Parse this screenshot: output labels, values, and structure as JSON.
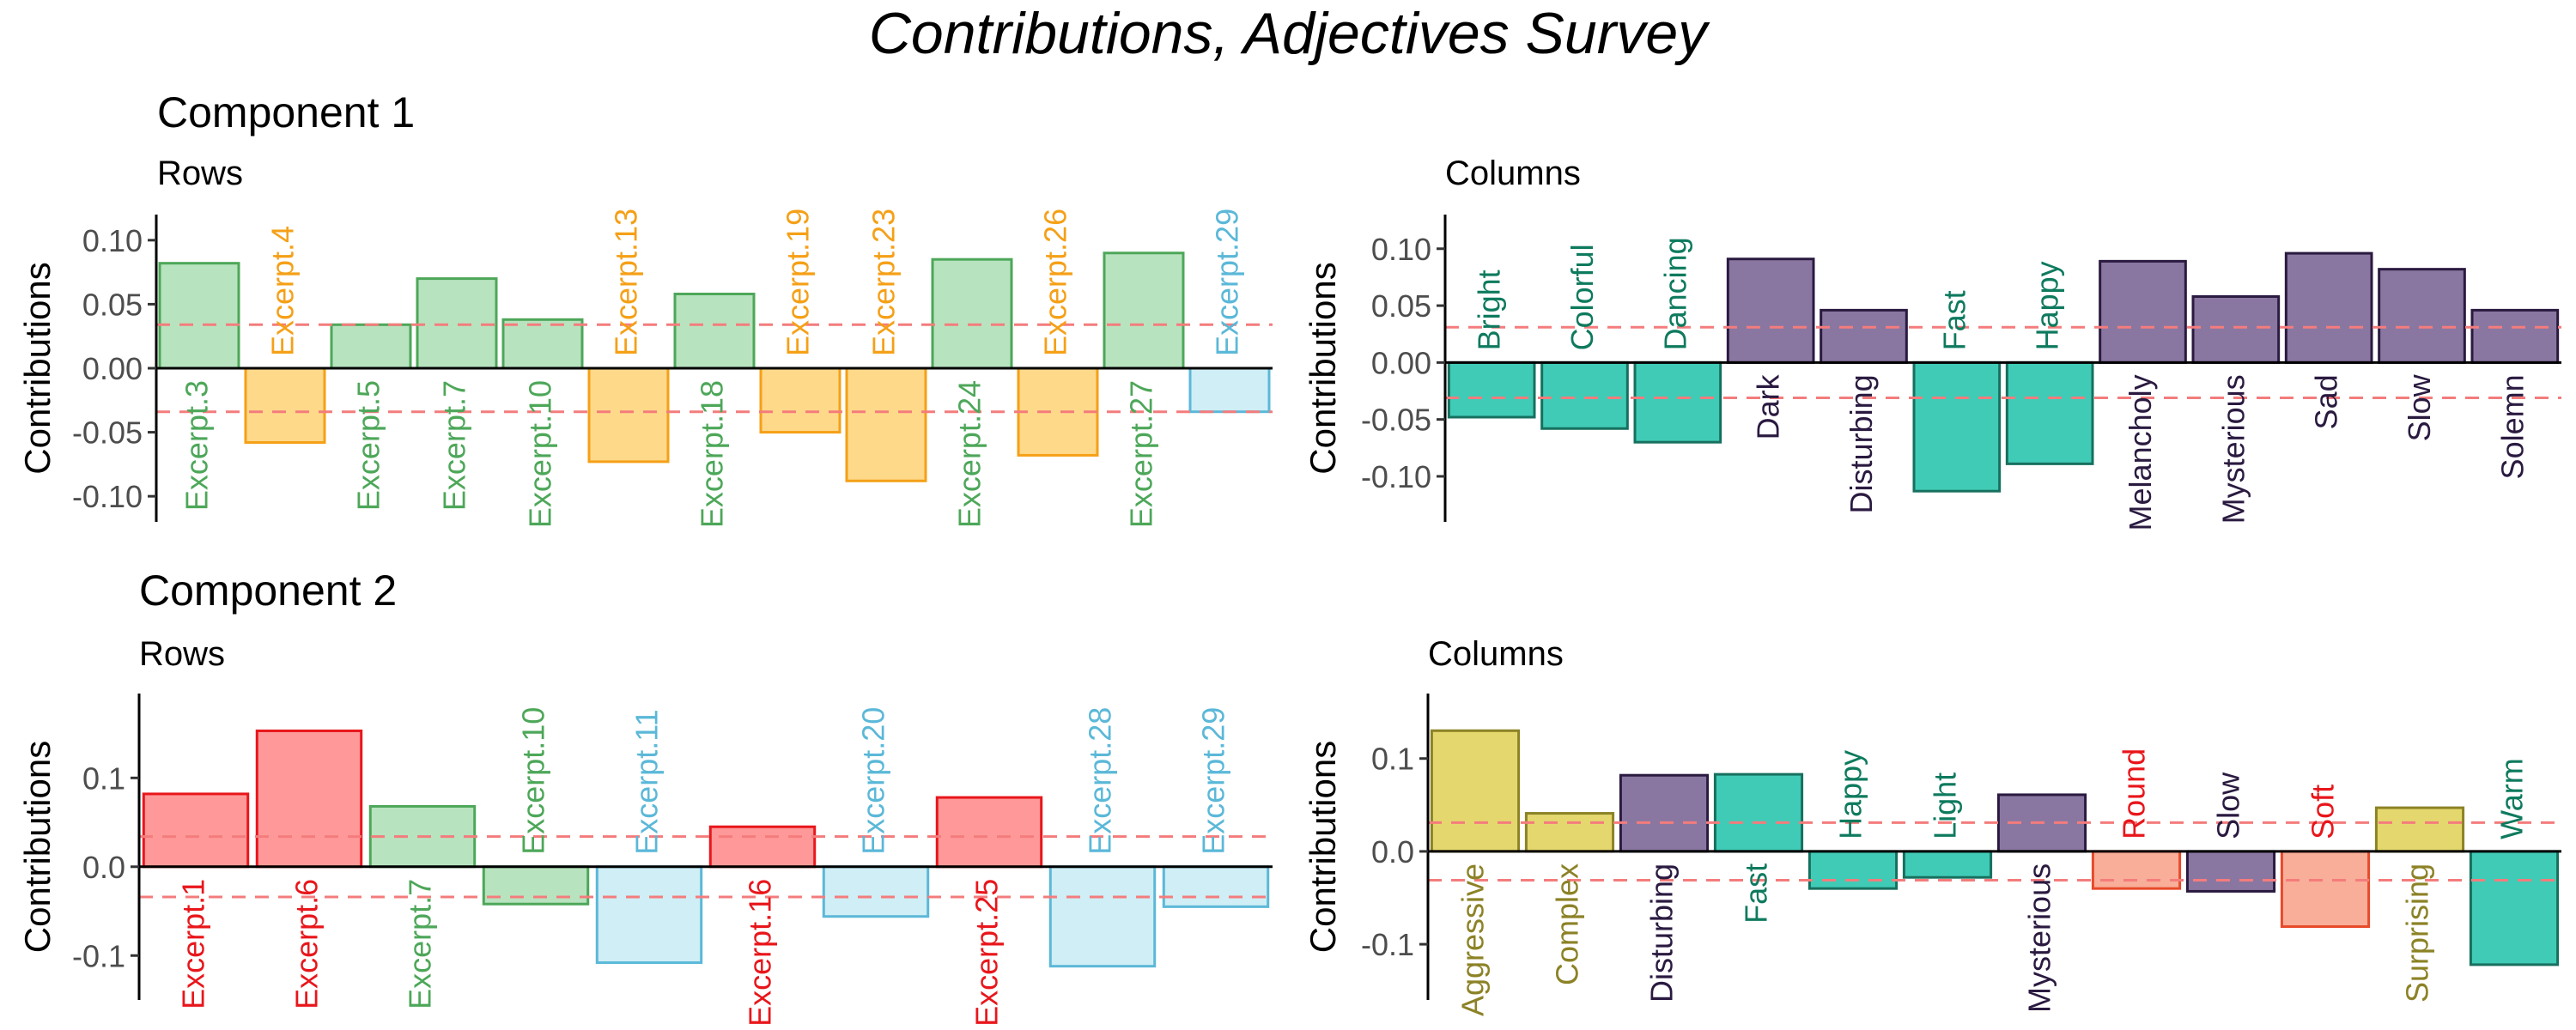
{
  "title": "Contributions, Adjectives Survey",
  "row_titles": [
    "Component 1",
    "Component 2"
  ],
  "colors": {
    "green_fill": "#B8E3BF",
    "green_stroke": "#4DA759",
    "green_text": "#4DA759",
    "orange_fill": "#FFD98A",
    "orange_stroke": "#F5A017",
    "orange_text": "#F5A017",
    "blue_fill": "#CFEEF5",
    "blue_stroke": "#5BB8D8",
    "blue_text": "#5BB8D8",
    "red_fill": "#FF9999",
    "red_stroke": "#E8161B",
    "red_text": "#E8161B",
    "purple_fill": "#8A77A1",
    "purple_stroke": "#2A1A40",
    "purple_text": "#2A1A40",
    "teal_fill": "#40CBB6",
    "teal_stroke": "#17705F",
    "teal_text": "#0E7A5E",
    "yellow_fill": "#E4D76E",
    "yellow_stroke": "#8C8226",
    "yellow_text": "#8C8226",
    "salmon_fill": "#F8AE98",
    "salmon_stroke": "#E84A2A",
    "salmon_text": "#E8161B",
    "threshold": "#F47C7C"
  },
  "chart_data": [
    {
      "type": "bar",
      "component": "Component 1",
      "title": "Rows",
      "ylabel": "Contributions",
      "ylim": [
        -0.12,
        0.12
      ],
      "yticks": [
        -0.1,
        -0.05,
        0.0,
        0.05,
        0.1
      ],
      "threshold": 0.034,
      "categories": [
        "Excerpt.3",
        "Excerpt.4",
        "Excerpt.5",
        "Excerpt.7",
        "Excerpt.10",
        "Excerpt.13",
        "Excerpt.18",
        "Excerpt.19",
        "Excerpt.23",
        "Excerpt.24",
        "Excerpt.26",
        "Excerpt.27",
        "Excerpt.29"
      ],
      "values": [
        0.082,
        -0.058,
        0.034,
        0.07,
        0.038,
        -0.073,
        0.058,
        -0.05,
        -0.088,
        0.085,
        -0.068,
        0.09,
        -0.034
      ],
      "colors": [
        "green",
        "orange",
        "green",
        "green",
        "green",
        "orange",
        "green",
        "orange",
        "orange",
        "green",
        "orange",
        "green",
        "blue"
      ]
    },
    {
      "type": "bar",
      "component": "Component 1",
      "title": "Columns",
      "ylabel": "Contributions",
      "ylim": [
        -0.14,
        0.13
      ],
      "yticks": [
        -0.1,
        -0.05,
        0.0,
        0.05,
        0.1
      ],
      "threshold": 0.031,
      "categories": [
        "Bright",
        "Colorful",
        "Dancing",
        "Dark",
        "Disturbing",
        "Fast",
        "Happy",
        "Melancholy",
        "Mysterious",
        "Sad",
        "Slow",
        "Solemn"
      ],
      "values": [
        -0.048,
        -0.058,
        -0.07,
        0.091,
        0.046,
        -0.113,
        -0.089,
        0.089,
        0.058,
        0.096,
        0.082,
        0.046
      ],
      "colors": [
        "teal",
        "teal",
        "teal",
        "purple",
        "purple",
        "teal",
        "teal",
        "purple",
        "purple",
        "purple",
        "purple",
        "purple"
      ]
    },
    {
      "type": "bar",
      "component": "Component 2",
      "title": "Rows",
      "ylabel": "Contributions",
      "ylim": [
        -0.15,
        0.195
      ],
      "yticks": [
        -0.1,
        0.0,
        0.1
      ],
      "threshold": 0.034,
      "categories": [
        "Excerpt.1",
        "Excerpt.6",
        "Excerpt.7",
        "Excerpt.10",
        "Excerpt.11",
        "Excerpt.16",
        "Excerpt.20",
        "Excerpt.25",
        "Excerpt.28",
        "Excerpt.29"
      ],
      "values": [
        0.082,
        0.153,
        0.068,
        -0.042,
        -0.108,
        0.045,
        -0.056,
        0.078,
        -0.112,
        -0.045
      ],
      "colors": [
        "red",
        "red",
        "green",
        "green",
        "blue",
        "red",
        "blue",
        "red",
        "blue",
        "blue"
      ]
    },
    {
      "type": "bar",
      "component": "Component 2",
      "title": "Columns",
      "ylabel": "Contributions",
      "ylim": [
        -0.16,
        0.17
      ],
      "yticks": [
        -0.1,
        0.0,
        0.1
      ],
      "threshold": 0.031,
      "categories": [
        "Aggressive",
        "Complex",
        "Disturbing",
        "Fast",
        "Happy",
        "Light",
        "Mysterious",
        "Round",
        "Slow",
        "Soft",
        "Surprising",
        "Warm"
      ],
      "values": [
        0.13,
        0.041,
        0.082,
        0.083,
        -0.04,
        -0.028,
        0.061,
        -0.04,
        -0.043,
        -0.081,
        0.047,
        -0.122
      ],
      "colors": [
        "yellow",
        "yellow",
        "purple",
        "teal",
        "teal",
        "teal",
        "purple",
        "salmon",
        "purple",
        "salmon",
        "yellow",
        "teal"
      ]
    }
  ]
}
